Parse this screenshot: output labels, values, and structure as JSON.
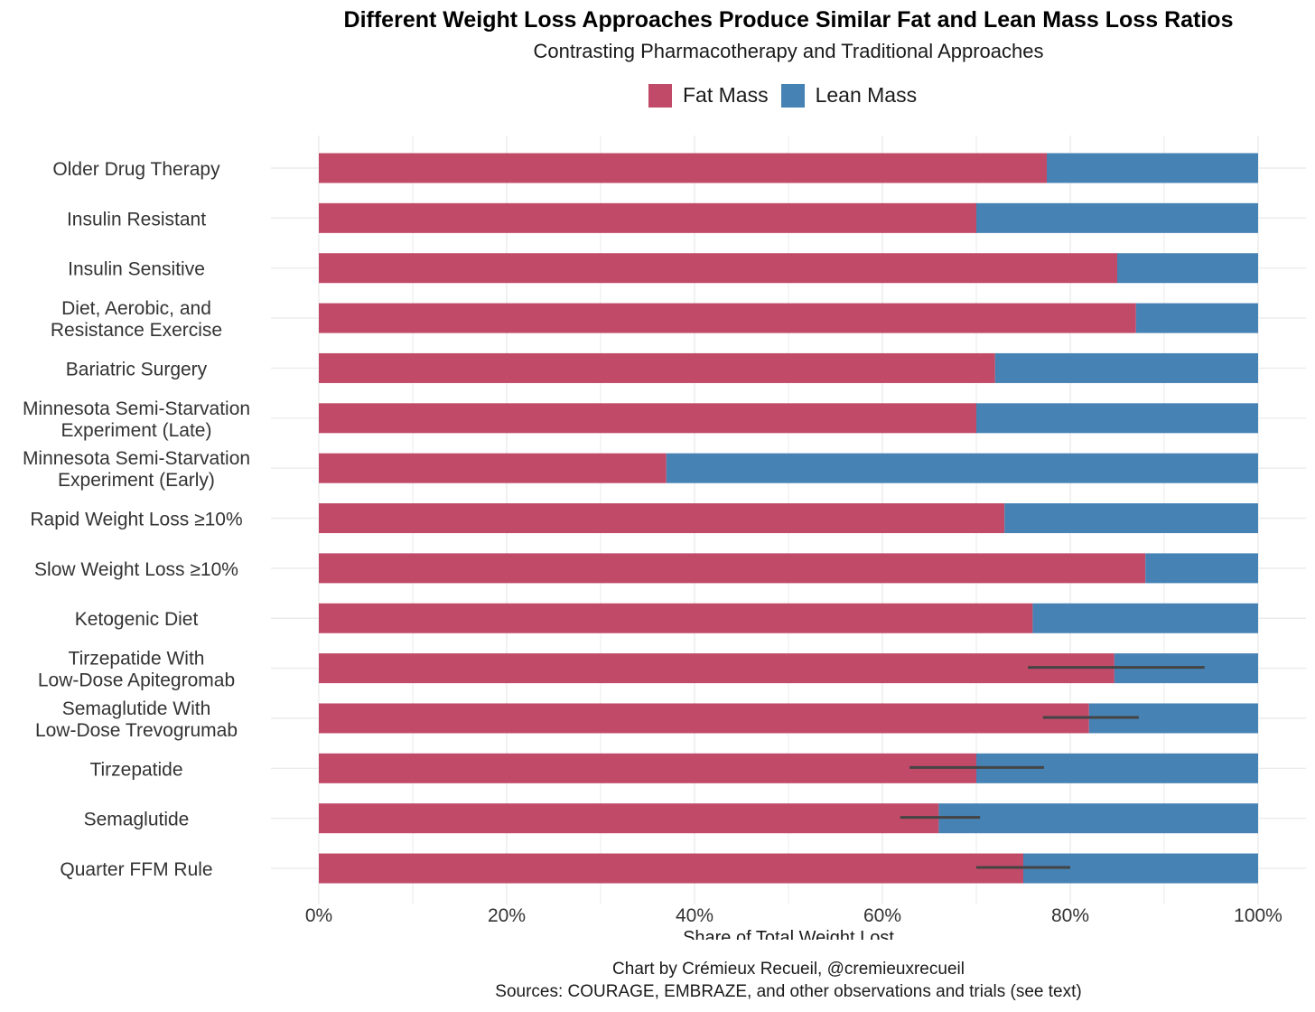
{
  "chart_data": {
    "type": "bar",
    "orientation": "horizontal",
    "stacked": true,
    "title": "Different Weight Loss Approaches Produce Similar Fat and Lean Mass Loss Ratios",
    "subtitle": "Contrasting Pharmacotherapy and Traditional Approaches",
    "xlabel": "Share of Total Weight Lost",
    "ylabel": "",
    "xlim": [
      0,
      100
    ],
    "x_ticks": [
      "0%",
      "20%",
      "40%",
      "60%",
      "80%",
      "100%"
    ],
    "grid": true,
    "legend_position": "top",
    "colors": {
      "fat": "#c14a68",
      "lean": "#4682b4",
      "errorbar": "#444444",
      "grid": "#ebebeb"
    },
    "categories": [
      [
        "Older Drug Therapy"
      ],
      [
        "Insulin Resistant"
      ],
      [
        "Insulin Sensitive"
      ],
      [
        "Diet, Aerobic, and",
        "Resistance Exercise"
      ],
      [
        "Bariatric Surgery"
      ],
      [
        "Minnesota Semi-Starvation",
        "Experiment (Late)"
      ],
      [
        "Minnesota Semi-Starvation",
        "Experiment (Early)"
      ],
      [
        "Rapid Weight Loss ≥10%"
      ],
      [
        "Slow Weight Loss ≥10%"
      ],
      [
        "Ketogenic Diet"
      ],
      [
        "Tirzepatide With",
        "Low-Dose Apitegromab"
      ],
      [
        "Semaglutide With",
        "Low-Dose Trevogrumab"
      ],
      [
        "Tirzepatide"
      ],
      [
        "Semaglutide"
      ],
      [
        "Quarter FFM Rule"
      ]
    ],
    "series": [
      {
        "name": "Fat Mass",
        "values": [
          77.5,
          70,
          85,
          87,
          72,
          70,
          37,
          73,
          88,
          76,
          84.7,
          82,
          70,
          66,
          75
        ]
      },
      {
        "name": "Lean Mass",
        "values": [
          22.5,
          30,
          15,
          13,
          28,
          30,
          63,
          27,
          12,
          24,
          15.3,
          18,
          30,
          34,
          25
        ]
      }
    ],
    "error_bars": [
      null,
      null,
      null,
      null,
      null,
      null,
      null,
      null,
      null,
      null,
      [
        75.5,
        94.3
      ],
      [
        77.1,
        87.3
      ],
      [
        62.9,
        77.2
      ],
      [
        61.9,
        70.4
      ],
      [
        70,
        80
      ]
    ]
  },
  "footer": {
    "line1": "Chart by Crémieux Recueil, @cremieuxrecueil",
    "line2": "Sources: COURAGE, EMBRAZE, and other observations and trials (see text)"
  }
}
